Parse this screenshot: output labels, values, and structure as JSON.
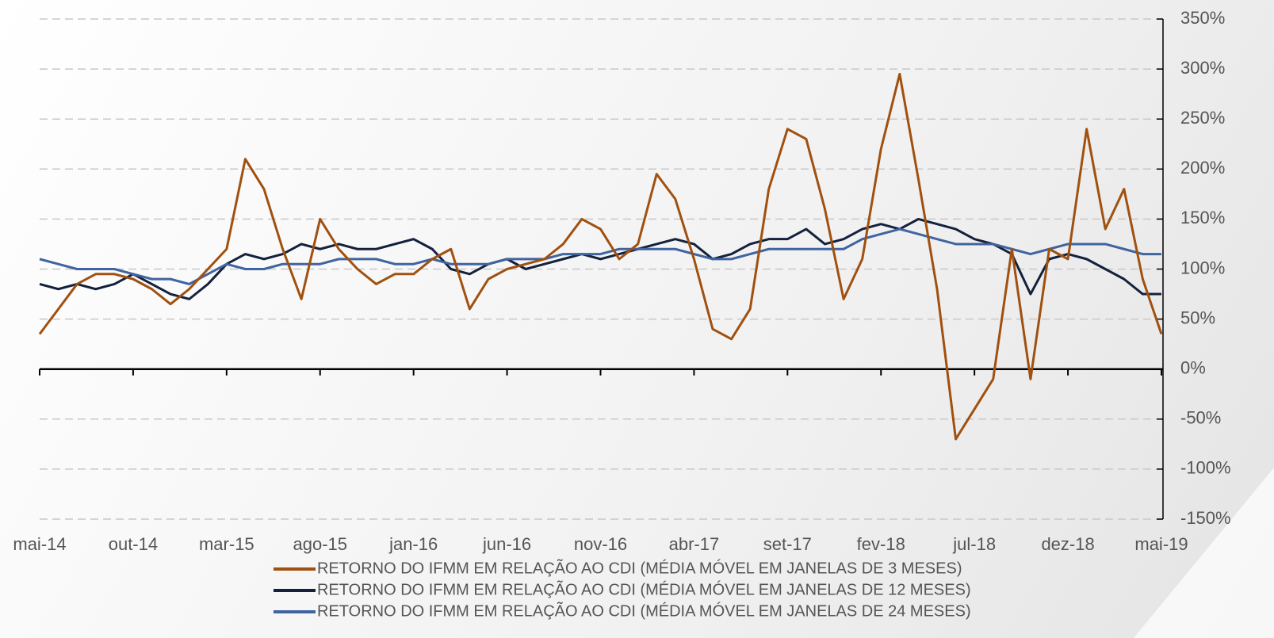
{
  "chart_data": {
    "type": "line",
    "categories": [
      "mai-14",
      null,
      null,
      null,
      null,
      "out-14",
      null,
      null,
      null,
      null,
      "mar-15",
      null,
      null,
      null,
      null,
      "ago-15",
      null,
      null,
      null,
      null,
      "jan-16",
      null,
      null,
      null,
      null,
      "jun-16",
      null,
      null,
      null,
      null,
      "nov-16",
      null,
      null,
      null,
      null,
      "abr-17",
      null,
      null,
      null,
      null,
      "set-17",
      null,
      null,
      null,
      null,
      "fev-18",
      null,
      null,
      null,
      null,
      "jul-18",
      null,
      null,
      null,
      null,
      "dez-18",
      null,
      null,
      null,
      null,
      "mai-19"
    ],
    "series": [
      {
        "name": "RETORNO DO IFMM EM RELAÇÃO AO CDI (MÉDIA MÓVEL EM JANELAS DE 3 MESES)",
        "color": "#a0500f",
        "values": [
          35,
          60,
          85,
          95,
          95,
          90,
          80,
          65,
          80,
          100,
          120,
          210,
          180,
          120,
          70,
          150,
          120,
          100,
          85,
          95,
          95,
          110,
          120,
          60,
          90,
          100,
          105,
          110,
          125,
          150,
          140,
          110,
          125,
          195,
          170,
          110,
          40,
          30,
          60,
          180,
          240,
          230,
          160,
          70,
          110,
          220,
          295,
          190,
          80,
          -70,
          -40,
          -10,
          120,
          -10,
          120,
          110,
          240,
          140,
          180,
          90,
          35
        ]
      },
      {
        "name": "RETORNO DO IFMM EM RELAÇÃO AO CDI (MÉDIA MÓVEL EM JANELAS DE 12 MESES)",
        "color": "#14213d",
        "values": [
          85,
          80,
          85,
          80,
          85,
          95,
          85,
          75,
          70,
          85,
          105,
          115,
          110,
          115,
          125,
          120,
          125,
          120,
          120,
          125,
          130,
          120,
          100,
          95,
          105,
          110,
          100,
          105,
          110,
          115,
          110,
          115,
          120,
          125,
          130,
          125,
          110,
          115,
          125,
          130,
          130,
          140,
          125,
          130,
          140,
          145,
          140,
          150,
          145,
          140,
          130,
          125,
          115,
          75,
          110,
          115,
          110,
          100,
          90,
          75,
          75
        ]
      },
      {
        "name": "RETORNO DO IFMM EM RELAÇÃO AO CDI (MÉDIA MÓVEL EM JANELAS DE 24 MESES)",
        "color": "#3f64a0",
        "values": [
          110,
          105,
          100,
          100,
          100,
          95,
          90,
          90,
          85,
          95,
          105,
          100,
          100,
          105,
          105,
          105,
          110,
          110,
          110,
          105,
          105,
          110,
          105,
          105,
          105,
          110,
          110,
          110,
          115,
          115,
          115,
          120,
          120,
          120,
          120,
          115,
          110,
          110,
          115,
          120,
          120,
          120,
          120,
          120,
          130,
          135,
          140,
          135,
          130,
          125,
          125,
          125,
          120,
          115,
          120,
          125,
          125,
          125,
          120,
          115,
          115
        ]
      }
    ],
    "ylim": [
      -150,
      350
    ],
    "yticks": [
      {
        "value": -150,
        "label": "-150%"
      },
      {
        "value": -100,
        "label": "-100%"
      },
      {
        "value": -50,
        "label": "-50%"
      },
      {
        "value": 0,
        "label": "0%"
      },
      {
        "value": 50,
        "label": "50%"
      },
      {
        "value": 100,
        "label": "100%"
      },
      {
        "value": 150,
        "label": "150%"
      },
      {
        "value": 200,
        "label": "200%"
      },
      {
        "value": 250,
        "label": "250%"
      },
      {
        "value": 300,
        "label": "300%"
      },
      {
        "value": 350,
        "label": "350%"
      }
    ],
    "grid": true
  }
}
